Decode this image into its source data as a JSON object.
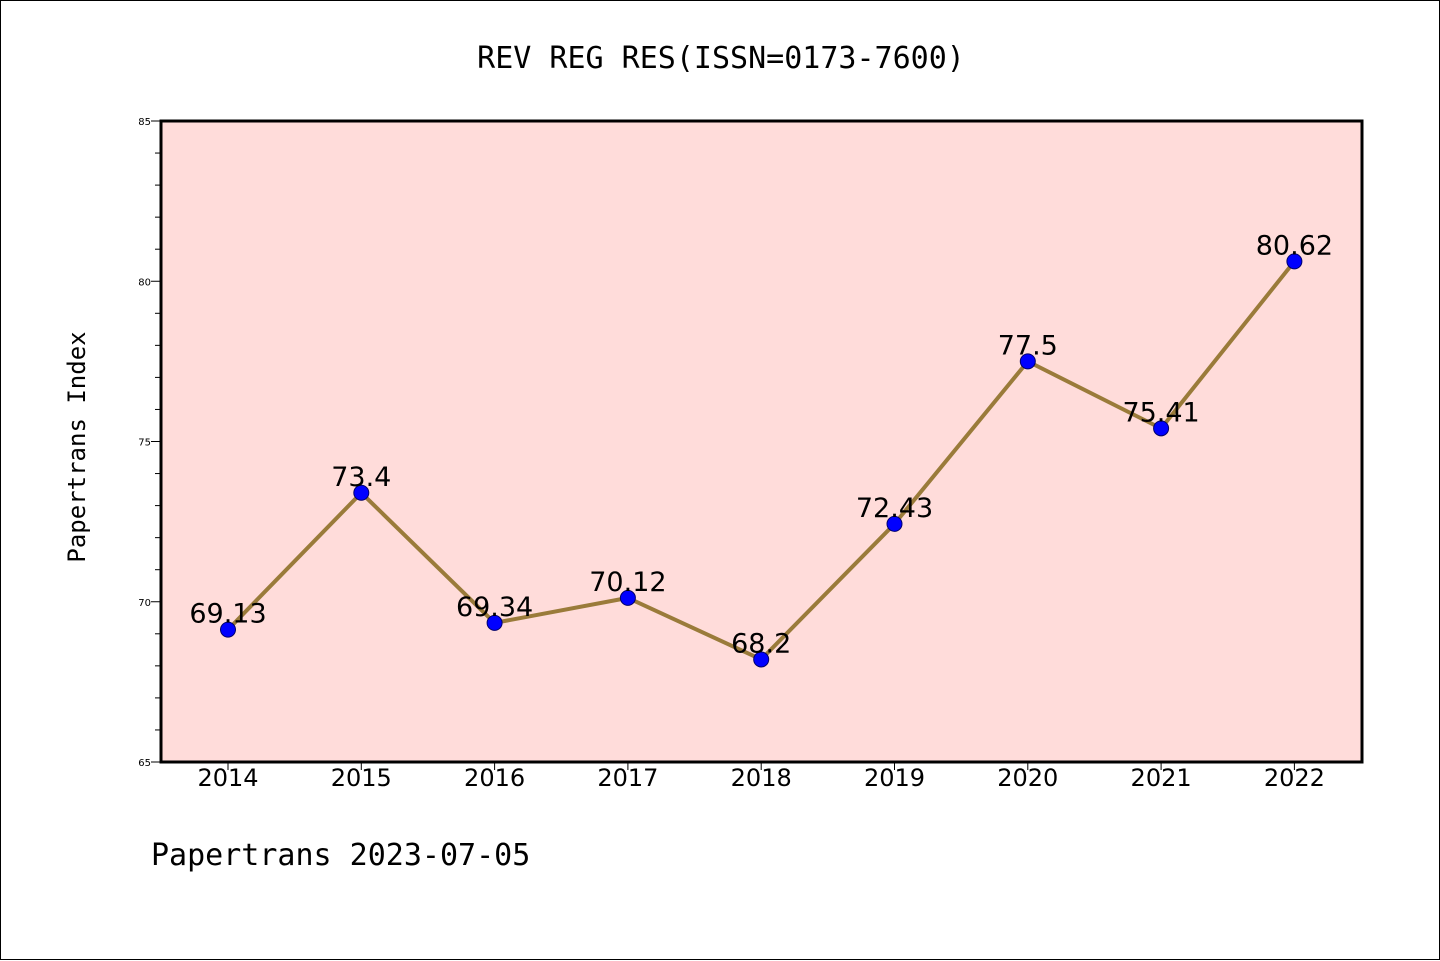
{
  "chart_data": {
    "type": "line",
    "title": "REV REG RES(ISSN=0173-7600)",
    "xlabel": "",
    "ylabel": "Papertrans Index",
    "categories": [
      "2014",
      "2015",
      "2016",
      "2017",
      "2018",
      "2019",
      "2020",
      "2021",
      "2022"
    ],
    "series": [
      {
        "values": [
          69.13,
          73.4,
          69.34,
          70.12,
          68.2,
          72.43,
          77.5,
          75.41,
          80.62
        ]
      }
    ],
    "data_labels": [
      "69.13",
      "73.4",
      "69.34",
      "70.12",
      "68.2",
      "72.43",
      "77.5",
      "75.41",
      "80.62"
    ],
    "ylim": [
      65,
      85
    ],
    "yticks": [
      "65",
      "70",
      "75",
      "80",
      "85"
    ],
    "grid": false,
    "legend": "none"
  },
  "footer": {
    "text": "Papertrans 2023-07-05"
  },
  "colors": {
    "plot_background": "#ffdcda",
    "line": "#9a7b3a",
    "marker": "#0000ff",
    "axis": "#000000"
  }
}
